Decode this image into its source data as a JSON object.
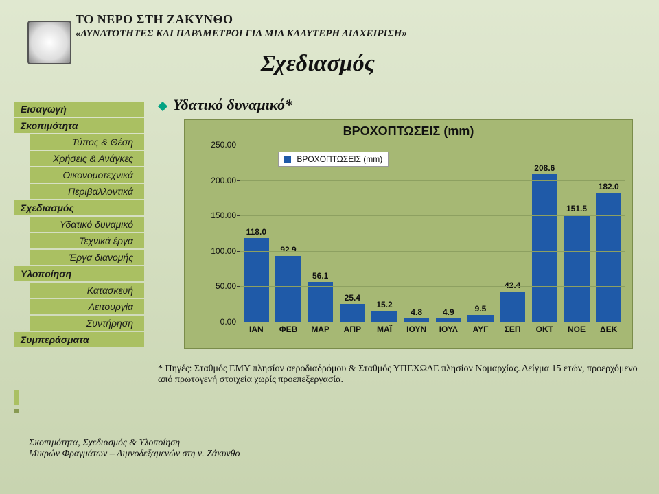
{
  "header": {
    "title": "ΤΟ ΝΕΡΟ ΣΤΗ ΖΑΚΥΝΘΟ",
    "subtitle": "«ΔΥΝΑΤΟΤΗΤΕΣ ΚΑΙ ΠΑΡΑΜΕΤΡΟΙ ΓΙΑ ΜΙΑ ΚΑΛΥΤΕΡΗ ΔΙΑΧΕΙΡΙΣΗ»"
  },
  "main": {
    "title": "Σχεδιασμός",
    "bullet": "Υδατικό δυναμικό*",
    "note": "* Πηγές: Σταθμός ΕΜΥ πλησίον αεροδιαδρόμου & Σταθμός ΥΠΕΧΩΔΕ πλησίον Νομαρχίας. Δείγμα 15 ετών, προερχόμενο από πρωτογενή στοιχεία χωρίς προεπεξεργασία."
  },
  "sidebar": {
    "items": [
      {
        "label": "Εισαγωγή",
        "level": "top"
      },
      {
        "label": "Σκοπιμότητα",
        "level": "top"
      },
      {
        "label": "Τύπος & Θέση",
        "level": "sub"
      },
      {
        "label": "Χρήσεις & Ανάγκες",
        "level": "sub"
      },
      {
        "label": "Οικονομοτεχνικά",
        "level": "sub"
      },
      {
        "label": "Περιβαλλοντικά",
        "level": "sub"
      },
      {
        "label": "Σχεδιασμός",
        "level": "top"
      },
      {
        "label": "Υδατικό δυναμικό",
        "level": "sub"
      },
      {
        "label": "Τεχνικά έργα",
        "level": "sub"
      },
      {
        "label": "Έργα διανομής",
        "level": "sub"
      },
      {
        "label": "Υλοποίηση",
        "level": "top"
      },
      {
        "label": "Κατασκευή",
        "level": "sub"
      },
      {
        "label": "Λειτουργία",
        "level": "sub"
      },
      {
        "label": "Συντήρηση",
        "level": "sub"
      },
      {
        "label": "Συμπεράσματα",
        "level": "top"
      }
    ]
  },
  "chart": {
    "type": "bar",
    "title": "ΒΡΟΧΟΠΤΩΣΕΙΣ (mm)",
    "legend_label": "ΒΡΟΧΟΠΤΩΣΕΙΣ (mm)",
    "categories": [
      "ΙΑΝ",
      "ΦΕΒ",
      "ΜΑΡ",
      "ΑΠΡ",
      "ΜΑΪ",
      "ΙΟΥΝ",
      "ΙΟΥΛ",
      "ΑΥΓ",
      "ΣΕΠ",
      "ΟΚΤ",
      "ΝΟΕ",
      "ΔΕΚ"
    ],
    "values": [
      118.0,
      92.9,
      56.1,
      25.4,
      15.2,
      4.8,
      4.9,
      9.5,
      42.4,
      208.6,
      151.5,
      182.0
    ],
    "value_label_fmt": [
      "118.0",
      "92.9",
      "56.1",
      "25.4",
      "15.2",
      "4.8",
      "4.9",
      "9.5",
      "42.4",
      "208.6",
      "151.5",
      "182.0"
    ],
    "bar_color": "#1f5aa8",
    "background_color": "#a6b874",
    "grid_color": "#8da061",
    "ylim": [
      0,
      250
    ],
    "ytick_step": 50,
    "ytick_labels": [
      "0.00",
      "50.00",
      "100.00",
      "150.00",
      "200.00",
      "250.00"
    ],
    "bar_width": 0.8,
    "label_fontsize": 12,
    "title_fontsize": 18
  },
  "footer": {
    "line1": "Σκοπιμότητα, Σχεδιασμός & Υλοποίηση",
    "line2": "Μικρών Φραγμάτων – Λιμνοδεξαμενών στη ν. Ζάκυνθο"
  }
}
